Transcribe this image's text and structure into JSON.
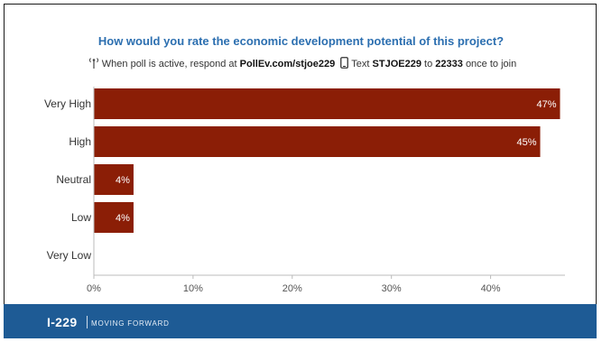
{
  "chart_data": {
    "type": "bar",
    "orientation": "horizontal",
    "title": "How would you rate the economic development potential of this project?",
    "categories": [
      "Very High",
      "High",
      "Neutral",
      "Low",
      "Very Low"
    ],
    "values": [
      47,
      45,
      4,
      4,
      0
    ],
    "data_labels": [
      "47%",
      "45%",
      "4%",
      "4%",
      ""
    ],
    "xlim": [
      0,
      47.5
    ],
    "x_ticks": [
      0,
      10,
      20,
      30,
      40
    ],
    "x_tick_labels": [
      "0%",
      "10%",
      "20%",
      "30%",
      "40%"
    ],
    "grid": false,
    "bar_color": "#8b1e06"
  },
  "instructions": {
    "web_prefix": "When poll is active, respond at",
    "web_url": "PollEv.com/stjoe229",
    "sms_prefix": "Text",
    "sms_code": "STJOE229",
    "sms_mid": "to",
    "sms_number": "22333",
    "sms_suffix": "once to join"
  },
  "footer": {
    "brand": "I-229",
    "tagline": "MOVING FORWARD",
    "background": "#1e5b95"
  }
}
